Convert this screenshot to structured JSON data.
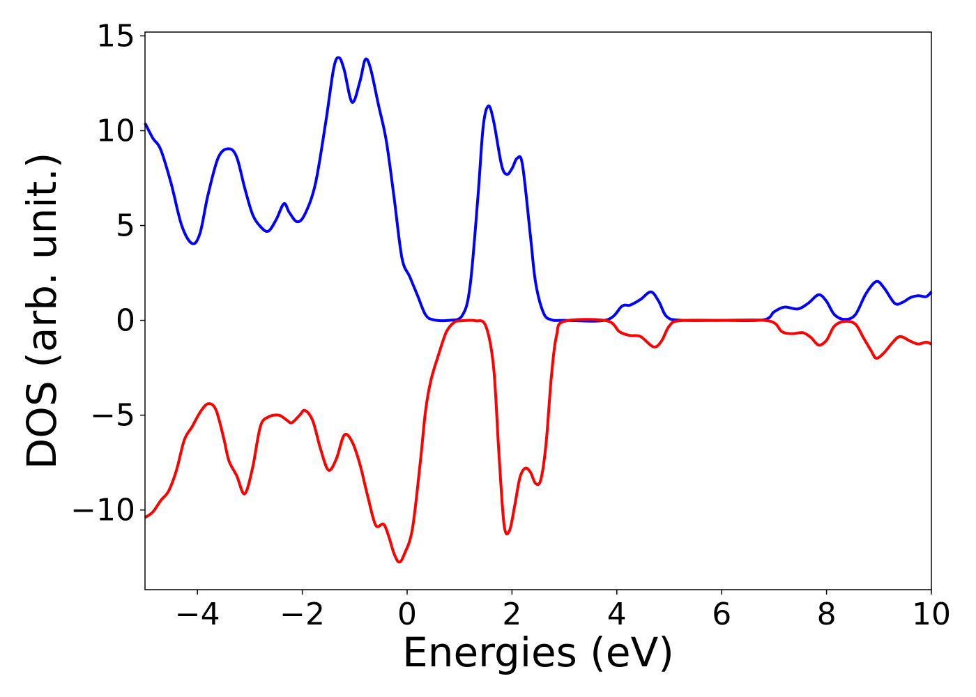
{
  "chart_data": {
    "type": "line",
    "title": "",
    "xlabel": "Energies (eV)",
    "ylabel": "DOS (arb. unit.)",
    "xlim": [
      -5,
      10
    ],
    "ylim": [
      -14.2,
      15.2
    ],
    "xticks": [
      -4,
      -2,
      0,
      2,
      4,
      6,
      8,
      10
    ],
    "xtick_labels": [
      "−4",
      "−2",
      "0",
      "2",
      "4",
      "6",
      "8",
      "10"
    ],
    "yticks": [
      -10,
      -5,
      0,
      5,
      10,
      15
    ],
    "ytick_labels": [
      "−10",
      "−5",
      "0",
      "5",
      "10",
      "15"
    ],
    "grid": false,
    "legend": "none",
    "series": [
      {
        "color": "#0000ff",
        "points": [
          [
            -5.0,
            10.4
          ],
          [
            -4.85,
            9.6
          ],
          [
            -4.7,
            9.0
          ],
          [
            -4.5,
            7.2
          ],
          [
            -4.3,
            5.0
          ],
          [
            -4.1,
            4.05
          ],
          [
            -3.95,
            4.6
          ],
          [
            -3.8,
            6.6
          ],
          [
            -3.6,
            8.6
          ],
          [
            -3.4,
            9.05
          ],
          [
            -3.25,
            8.6
          ],
          [
            -3.1,
            7.0
          ],
          [
            -2.95,
            5.6
          ],
          [
            -2.8,
            4.95
          ],
          [
            -2.65,
            4.7
          ],
          [
            -2.5,
            5.3
          ],
          [
            -2.35,
            6.15
          ],
          [
            -2.25,
            5.7
          ],
          [
            -2.1,
            5.2
          ],
          [
            -1.95,
            5.6
          ],
          [
            -1.75,
            7.2
          ],
          [
            -1.55,
            10.5
          ],
          [
            -1.4,
            13.3
          ],
          [
            -1.3,
            13.85
          ],
          [
            -1.2,
            13.2
          ],
          [
            -1.05,
            11.5
          ],
          [
            -0.9,
            12.6
          ],
          [
            -0.8,
            13.75
          ],
          [
            -0.7,
            13.3
          ],
          [
            -0.55,
            11.4
          ],
          [
            -0.4,
            9.5
          ],
          [
            -0.25,
            6.5
          ],
          [
            -0.1,
            3.3
          ],
          [
            0.05,
            2.3
          ],
          [
            0.2,
            1.3
          ],
          [
            0.35,
            0.3
          ],
          [
            0.5,
            0.03
          ],
          [
            0.8,
            0.0
          ],
          [
            1.05,
            0.25
          ],
          [
            1.2,
            1.8
          ],
          [
            1.35,
            6.5
          ],
          [
            1.45,
            10.2
          ],
          [
            1.55,
            11.3
          ],
          [
            1.65,
            10.5
          ],
          [
            1.8,
            8.2
          ],
          [
            1.9,
            7.7
          ],
          [
            2.0,
            8.0
          ],
          [
            2.1,
            8.55
          ],
          [
            2.2,
            8.2
          ],
          [
            2.35,
            4.5
          ],
          [
            2.45,
            2.0
          ],
          [
            2.6,
            0.4
          ],
          [
            2.75,
            0.03
          ],
          [
            3.0,
            0.0
          ],
          [
            3.8,
            0.02
          ],
          [
            4.1,
            0.75
          ],
          [
            4.25,
            0.8
          ],
          [
            4.45,
            1.1
          ],
          [
            4.65,
            1.5
          ],
          [
            4.8,
            1.0
          ],
          [
            4.95,
            0.2
          ],
          [
            5.2,
            0.01
          ],
          [
            6.0,
            0.0
          ],
          [
            6.8,
            0.03
          ],
          [
            7.0,
            0.45
          ],
          [
            7.2,
            0.7
          ],
          [
            7.45,
            0.6
          ],
          [
            7.65,
            0.9
          ],
          [
            7.85,
            1.35
          ],
          [
            8.0,
            1.0
          ],
          [
            8.15,
            0.3
          ],
          [
            8.35,
            0.05
          ],
          [
            8.55,
            0.3
          ],
          [
            8.75,
            1.4
          ],
          [
            8.95,
            2.05
          ],
          [
            9.1,
            1.7
          ],
          [
            9.3,
            0.9
          ],
          [
            9.45,
            0.95
          ],
          [
            9.6,
            1.2
          ],
          [
            9.75,
            1.3
          ],
          [
            9.9,
            1.25
          ],
          [
            10.0,
            1.5
          ]
        ]
      },
      {
        "color": "#ff0000",
        "points": [
          [
            -5.0,
            -10.4
          ],
          [
            -4.85,
            -10.1
          ],
          [
            -4.7,
            -9.5
          ],
          [
            -4.55,
            -9.0
          ],
          [
            -4.4,
            -7.9
          ],
          [
            -4.25,
            -6.3
          ],
          [
            -4.1,
            -5.6
          ],
          [
            -3.95,
            -4.85
          ],
          [
            -3.8,
            -4.4
          ],
          [
            -3.65,
            -4.7
          ],
          [
            -3.5,
            -6.2
          ],
          [
            -3.4,
            -7.4
          ],
          [
            -3.25,
            -8.2
          ],
          [
            -3.1,
            -9.15
          ],
          [
            -2.95,
            -7.8
          ],
          [
            -2.8,
            -5.6
          ],
          [
            -2.65,
            -5.1
          ],
          [
            -2.45,
            -5.0
          ],
          [
            -2.3,
            -5.25
          ],
          [
            -2.2,
            -5.4
          ],
          [
            -2.05,
            -5.0
          ],
          [
            -1.95,
            -4.75
          ],
          [
            -1.8,
            -5.3
          ],
          [
            -1.65,
            -6.8
          ],
          [
            -1.5,
            -7.9
          ],
          [
            -1.35,
            -7.3
          ],
          [
            -1.2,
            -6.05
          ],
          [
            -1.05,
            -6.4
          ],
          [
            -0.9,
            -7.6
          ],
          [
            -0.75,
            -9.3
          ],
          [
            -0.6,
            -10.8
          ],
          [
            -0.45,
            -10.75
          ],
          [
            -0.35,
            -11.4
          ],
          [
            -0.25,
            -12.3
          ],
          [
            -0.15,
            -12.75
          ],
          [
            -0.05,
            -12.3
          ],
          [
            0.1,
            -11.0
          ],
          [
            0.25,
            -7.5
          ],
          [
            0.35,
            -4.8
          ],
          [
            0.45,
            -3.2
          ],
          [
            0.6,
            -1.8
          ],
          [
            0.75,
            -0.6
          ],
          [
            0.9,
            -0.1
          ],
          [
            1.05,
            -0.02
          ],
          [
            1.3,
            -0.02
          ],
          [
            1.5,
            -0.3
          ],
          [
            1.65,
            -2.5
          ],
          [
            1.75,
            -7.0
          ],
          [
            1.85,
            -10.8
          ],
          [
            1.95,
            -11.1
          ],
          [
            2.05,
            -9.8
          ],
          [
            2.15,
            -8.3
          ],
          [
            2.25,
            -7.8
          ],
          [
            2.35,
            -8.0
          ],
          [
            2.45,
            -8.6
          ],
          [
            2.55,
            -8.4
          ],
          [
            2.65,
            -6.5
          ],
          [
            2.75,
            -3.0
          ],
          [
            2.85,
            -0.8
          ],
          [
            3.0,
            -0.05
          ],
          [
            3.8,
            -0.02
          ],
          [
            4.05,
            -0.6
          ],
          [
            4.25,
            -0.8
          ],
          [
            4.45,
            -0.85
          ],
          [
            4.7,
            -1.4
          ],
          [
            4.85,
            -1.1
          ],
          [
            5.0,
            -0.3
          ],
          [
            5.2,
            -0.02
          ],
          [
            6.0,
            0.0
          ],
          [
            6.9,
            -0.03
          ],
          [
            7.15,
            -0.6
          ],
          [
            7.35,
            -0.7
          ],
          [
            7.55,
            -0.65
          ],
          [
            7.7,
            -0.9
          ],
          [
            7.85,
            -1.3
          ],
          [
            8.0,
            -1.05
          ],
          [
            8.15,
            -0.3
          ],
          [
            8.35,
            -0.05
          ],
          [
            8.55,
            -0.2
          ],
          [
            8.7,
            -0.9
          ],
          [
            8.85,
            -1.6
          ],
          [
            8.95,
            -2.0
          ],
          [
            9.1,
            -1.7
          ],
          [
            9.25,
            -1.2
          ],
          [
            9.4,
            -0.85
          ],
          [
            9.6,
            -1.1
          ],
          [
            9.75,
            -1.25
          ],
          [
            9.9,
            -1.15
          ],
          [
            10.0,
            -1.25
          ]
        ]
      }
    ]
  }
}
